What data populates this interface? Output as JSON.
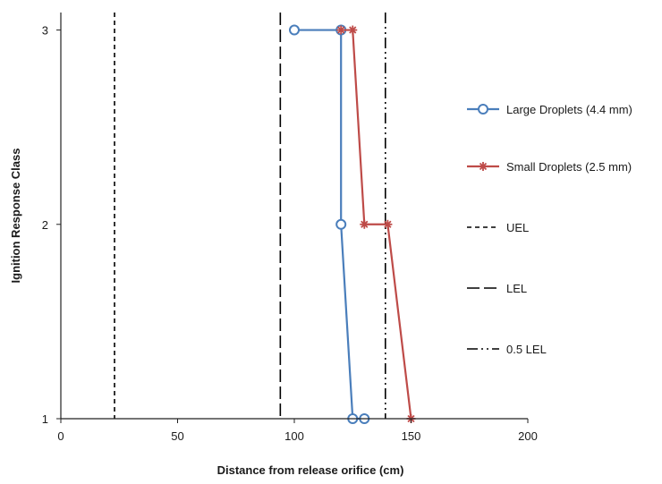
{
  "chart_data": {
    "type": "line",
    "title": "",
    "xlabel": "Distance  from release orifice (cm)",
    "ylabel": "Ignition Response Class",
    "xlim": [
      0,
      200
    ],
    "ylim": [
      1,
      3
    ],
    "x_ticks": [
      0,
      50,
      100,
      150,
      200
    ],
    "y_ticks": [
      1,
      2,
      3
    ],
    "x_tick_labels": [
      "0",
      "50",
      "100",
      "150",
      "200"
    ],
    "y_tick_labels": [
      "1",
      "2",
      "3"
    ],
    "grid": false,
    "legend_position": "right",
    "series": [
      {
        "name": "Large Droplets (4.4 mm)",
        "color": "#4a7ebb",
        "marker": "circle",
        "points": [
          [
            100,
            3
          ],
          [
            120,
            3
          ],
          [
            120,
            2
          ],
          [
            125,
            1
          ],
          [
            130,
            1
          ]
        ]
      },
      {
        "name": "Small Droplets (2.5 mm)",
        "color": "#be4b48",
        "marker": "star",
        "points": [
          [
            120,
            3
          ],
          [
            125,
            3
          ],
          [
            130,
            2
          ],
          [
            140,
            2
          ],
          [
            150,
            1
          ]
        ]
      }
    ],
    "reference_lines": [
      {
        "name": "UEL",
        "x": 23,
        "style": "short-dash",
        "color": "#000000"
      },
      {
        "name": "LEL",
        "x": 94,
        "style": "long-dash",
        "color": "#000000"
      },
      {
        "name": "0.5 LEL",
        "x": 139,
        "style": "dash-dot-dot",
        "color": "#000000"
      }
    ]
  }
}
